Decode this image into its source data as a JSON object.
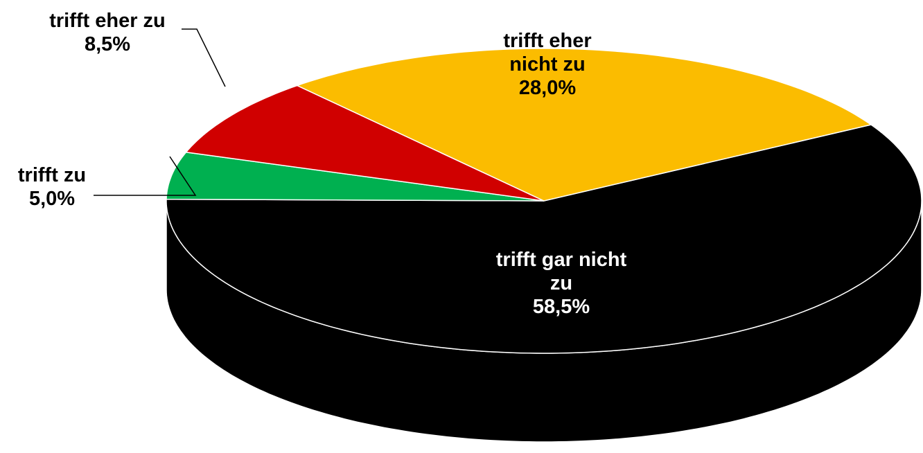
{
  "chart_data": {
    "type": "pie",
    "categories": [
      "trifft gar nicht zu",
      "trifft zu",
      "trifft eher zu",
      "trifft eher nicht zu"
    ],
    "values": [
      58.5,
      5.0,
      8.5,
      28.0
    ],
    "value_labels": [
      "58,5%",
      "5,0%",
      "8,5%",
      "28,0%"
    ],
    "colors": [
      "#000000",
      "#00b050",
      "#d00000",
      "#fbbc00"
    ],
    "three_d": true
  }
}
